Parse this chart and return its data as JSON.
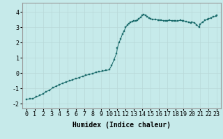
{
  "title": "",
  "xlabel": "Humidex (Indice chaleur)",
  "ylabel": "",
  "background_color": "#c6eaea",
  "grid_color": "#b8d8d8",
  "line_color": "#1a6b6b",
  "marker_color": "#1a6b6b",
  "xlim": [
    -0.5,
    23.5
  ],
  "ylim": [
    -2.3,
    4.6
  ],
  "yticks": [
    -2,
    -1,
    0,
    1,
    2,
    3,
    4
  ],
  "xticks": [
    0,
    1,
    2,
    3,
    4,
    5,
    6,
    7,
    8,
    9,
    10,
    11,
    12,
    13,
    14,
    15,
    16,
    17,
    18,
    19,
    20,
    21,
    22,
    23
  ],
  "x": [
    0,
    0.4,
    0.8,
    1.2,
    1.6,
    2.0,
    2.4,
    2.8,
    3.2,
    3.6,
    4.0,
    4.4,
    4.8,
    5.2,
    5.6,
    6.0,
    6.4,
    6.8,
    7.2,
    7.6,
    8.0,
    8.4,
    8.8,
    9.2,
    9.6,
    10.0,
    10.3,
    10.6,
    10.9,
    11.0,
    11.2,
    11.4,
    11.6,
    11.8,
    12.0,
    12.2,
    12.4,
    12.6,
    12.8,
    13.0,
    13.2,
    13.4,
    13.6,
    13.8,
    14.0,
    14.2,
    14.4,
    14.6,
    14.8,
    15.0,
    15.3,
    15.6,
    15.9,
    16.0,
    16.3,
    16.6,
    16.9,
    17.0,
    17.3,
    17.6,
    17.9,
    18.0,
    18.3,
    18.6,
    18.9,
    19.0,
    19.3,
    19.6,
    19.9,
    20.0,
    20.3,
    20.6,
    20.9,
    21.0,
    21.3,
    21.6,
    21.9,
    22.0,
    22.3,
    22.6,
    22.9,
    23.0
  ],
  "y": [
    -1.7,
    -1.68,
    -1.65,
    -1.55,
    -1.45,
    -1.35,
    -1.2,
    -1.1,
    -0.95,
    -0.85,
    -0.75,
    -0.65,
    -0.57,
    -0.5,
    -0.42,
    -0.35,
    -0.28,
    -0.2,
    -0.14,
    -0.08,
    -0.02,
    0.05,
    0.1,
    0.14,
    0.18,
    0.22,
    0.5,
    0.9,
    1.3,
    1.65,
    2.0,
    2.25,
    2.55,
    2.75,
    3.0,
    3.15,
    3.25,
    3.32,
    3.38,
    3.4,
    3.42,
    3.45,
    3.55,
    3.65,
    3.78,
    3.82,
    3.78,
    3.7,
    3.62,
    3.55,
    3.52,
    3.5,
    3.48,
    3.47,
    3.46,
    3.44,
    3.42,
    3.43,
    3.45,
    3.44,
    3.42,
    3.4,
    3.42,
    3.45,
    3.44,
    3.42,
    3.38,
    3.32,
    3.28,
    3.35,
    3.3,
    3.15,
    3.0,
    3.2,
    3.35,
    3.45,
    3.52,
    3.55,
    3.62,
    3.68,
    3.72,
    3.8
  ],
  "tick_fontsize": 6,
  "xlabel_fontsize": 7,
  "outer_border_color": "#999999"
}
